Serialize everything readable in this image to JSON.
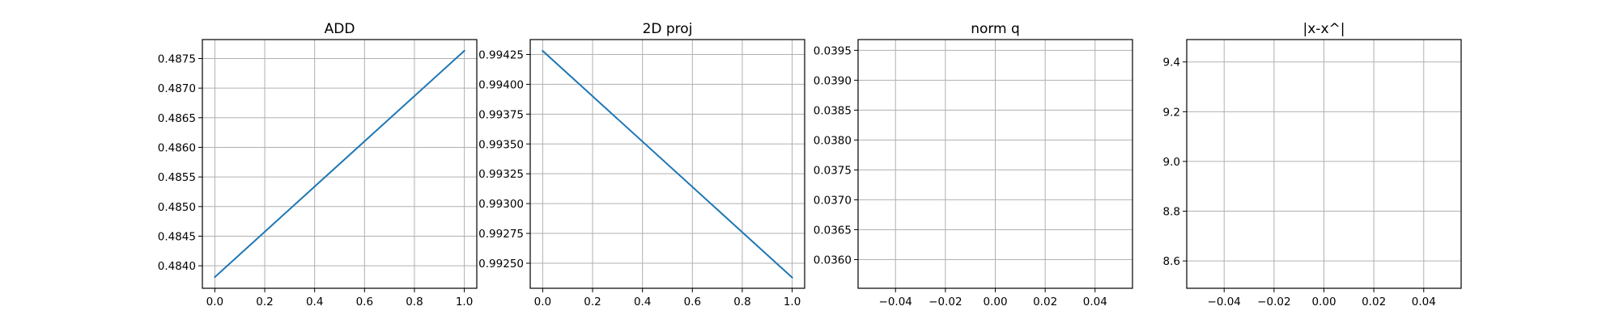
{
  "figure": {
    "line_color": "#1f77b4",
    "grid_color": "#b0b0b0",
    "background": "#ffffff"
  },
  "chart_data": [
    {
      "type": "line",
      "title": "ADD",
      "xlabel": "",
      "ylabel": "",
      "grid": true,
      "xlim": [
        -0.05,
        1.05
      ],
      "ylim": [
        0.48362,
        0.48782
      ],
      "x_ticks": [
        0.0,
        0.2,
        0.4,
        0.6,
        0.8,
        1.0
      ],
      "x_tick_labels": [
        "0.0",
        "0.2",
        "0.4",
        "0.6",
        "0.8",
        "1.0"
      ],
      "y_ticks": [
        0.484,
        0.4845,
        0.485,
        0.4855,
        0.486,
        0.4865,
        0.487,
        0.4875
      ],
      "y_tick_labels": [
        "0.4840",
        "0.4845",
        "0.4850",
        "0.4855",
        "0.4860",
        "0.4865",
        "0.4870",
        "0.4875"
      ],
      "series": [
        {
          "x": [
            0,
            1
          ],
          "y": [
            0.48381,
            0.48763
          ]
        }
      ]
    },
    {
      "type": "line",
      "title": "2D proj",
      "xlabel": "",
      "ylabel": "",
      "grid": true,
      "xlim": [
        -0.05,
        1.05
      ],
      "ylim": [
        0.99229,
        0.994375
      ],
      "x_ticks": [
        0.0,
        0.2,
        0.4,
        0.6,
        0.8,
        1.0
      ],
      "x_tick_labels": [
        "0.0",
        "0.2",
        "0.4",
        "0.6",
        "0.8",
        "1.0"
      ],
      "y_ticks": [
        0.9925,
        0.99275,
        0.993,
        0.99325,
        0.9935,
        0.99375,
        0.994,
        0.99425
      ],
      "y_tick_labels": [
        "0.99250",
        "0.99275",
        "0.99300",
        "0.99325",
        "0.99350",
        "0.99375",
        "0.99400",
        "0.99425"
      ],
      "series": [
        {
          "x": [
            0,
            1
          ],
          "y": [
            0.99428,
            0.99238
          ]
        }
      ]
    },
    {
      "type": "line",
      "title": "norm q",
      "xlabel": "",
      "ylabel": "",
      "grid": true,
      "xlim": [
        -0.055,
        0.055
      ],
      "ylim": [
        0.03552,
        0.03968
      ],
      "x_ticks": [
        -0.04,
        -0.02,
        0.0,
        0.02,
        0.04
      ],
      "x_tick_labels": [
        "−0.04",
        "−0.02",
        "0.00",
        "0.02",
        "0.04"
      ],
      "y_ticks": [
        0.036,
        0.0365,
        0.037,
        0.0375,
        0.038,
        0.0385,
        0.039,
        0.0395
      ],
      "y_tick_labels": [
        "0.0360",
        "0.0365",
        "0.0370",
        "0.0375",
        "0.0380",
        "0.0385",
        "0.0390",
        "0.0395"
      ],
      "series": []
    },
    {
      "type": "line",
      "title": "|x-x^|",
      "xlabel": "",
      "ylabel": "",
      "grid": true,
      "xlim": [
        -0.055,
        0.055
      ],
      "ylim": [
        8.49,
        9.49
      ],
      "x_ticks": [
        -0.04,
        -0.02,
        0.0,
        0.02,
        0.04
      ],
      "x_tick_labels": [
        "−0.04",
        "−0.02",
        "0.00",
        "0.02",
        "0.04"
      ],
      "y_ticks": [
        8.6,
        8.8,
        9.0,
        9.2,
        9.4
      ],
      "y_tick_labels": [
        "8.6",
        "8.8",
        "9.0",
        "9.2",
        "9.4"
      ],
      "series": []
    }
  ]
}
